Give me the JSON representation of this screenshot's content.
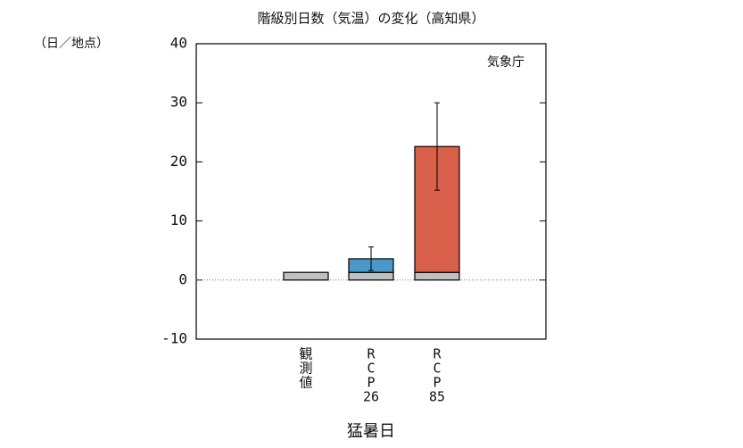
{
  "chart_data": {
    "type": "bar",
    "title": "階級別日数（気温）の変化（高知県）",
    "y_unit": "（日／地点）",
    "annotation": "気象庁",
    "xlabel": "猛暑日",
    "categories": [
      [
        "観",
        "測",
        "値"
      ],
      [
        "R",
        "C",
        "P",
        "26"
      ],
      [
        "R",
        "C",
        "P",
        "85"
      ]
    ],
    "series": [
      {
        "color": "#c0c0c0",
        "values": [
          1.3,
          1.3,
          1.3
        ]
      },
      {
        "colors": [
          null,
          "#4a98c9",
          "#d9604a"
        ],
        "values": [
          null,
          2.3,
          21.3
        ],
        "errors": [
          null,
          2.0,
          7.4
        ]
      }
    ],
    "ylim": [
      -10,
      40
    ],
    "yticks": [
      -10,
      0,
      10,
      20,
      30,
      40
    ],
    "zero_line": true
  }
}
